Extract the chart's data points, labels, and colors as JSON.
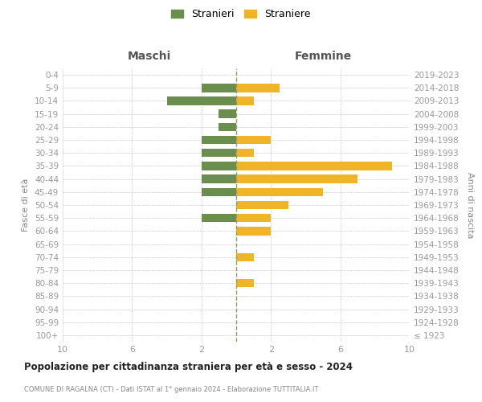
{
  "age_groups": [
    "100+",
    "95-99",
    "90-94",
    "85-89",
    "80-84",
    "75-79",
    "70-74",
    "65-69",
    "60-64",
    "55-59",
    "50-54",
    "45-49",
    "40-44",
    "35-39",
    "30-34",
    "25-29",
    "20-24",
    "15-19",
    "10-14",
    "5-9",
    "0-4"
  ],
  "birth_years": [
    "≤ 1923",
    "1924-1928",
    "1929-1933",
    "1934-1938",
    "1939-1943",
    "1944-1948",
    "1949-1953",
    "1954-1958",
    "1959-1963",
    "1964-1968",
    "1969-1973",
    "1974-1978",
    "1979-1983",
    "1984-1988",
    "1989-1993",
    "1994-1998",
    "1999-2003",
    "2004-2008",
    "2009-2013",
    "2014-2018",
    "2019-2023"
  ],
  "maschi": [
    0,
    0,
    0,
    0,
    0,
    0,
    0,
    0,
    0,
    2,
    0,
    2,
    2,
    2,
    2,
    2,
    1,
    1,
    4,
    2,
    0
  ],
  "femmine": [
    0,
    0,
    0,
    0,
    1,
    0,
    1,
    0,
    2,
    2,
    3,
    5,
    7,
    9,
    1,
    2,
    0,
    0,
    1,
    2.5,
    0
  ],
  "maschi_color": "#6b8e4e",
  "femmine_color": "#f0b429",
  "title": "Popolazione per cittadinanza straniera per età e sesso - 2024",
  "subtitle": "COMUNE DI RAGALNA (CT) - Dati ISTAT al 1° gennaio 2024 - Elaborazione TUTTITALIA.IT",
  "ylabel_left": "Fasce di età",
  "ylabel_right": "Anni di nascita",
  "xlabel_maschi": "Maschi",
  "xlabel_femmine": "Femmine",
  "legend_stranieri": "Stranieri",
  "legend_straniere": "Straniere",
  "xlim": 10,
  "xtick_positions": [
    -10,
    -6,
    -2,
    2,
    6,
    10
  ],
  "xtick_labels": [
    "10",
    "6",
    "2",
    "2",
    "6",
    "10"
  ],
  "bg_color": "#ffffff",
  "grid_color": "#cccccc",
  "center_line_color": "#999966"
}
